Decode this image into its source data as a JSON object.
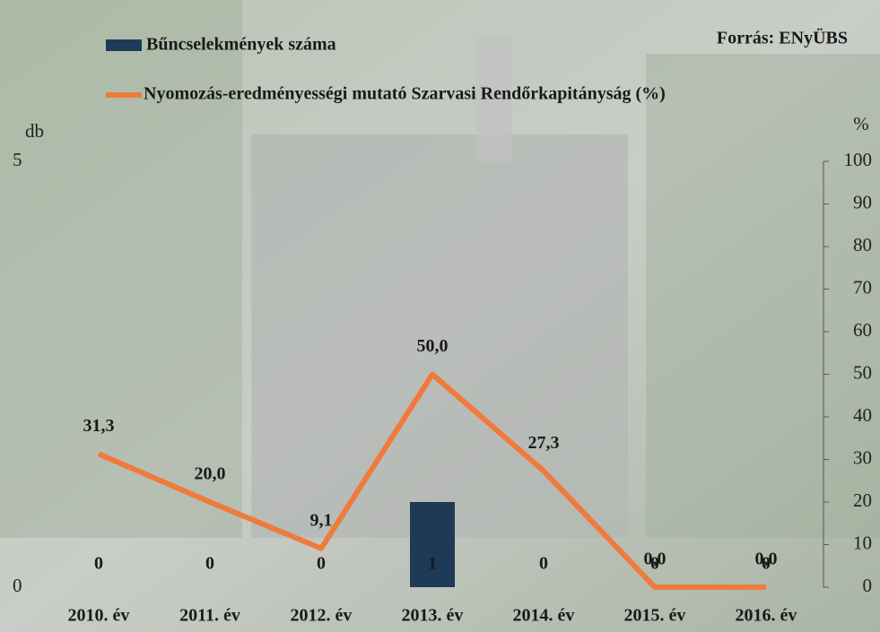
{
  "chart_data": {
    "type": "combo",
    "annotation": "Forrás: ENyÜBS",
    "y_label": "db",
    "y2_label": "%",
    "categories": [
      "2010. év",
      "2011. év",
      "2012. év",
      "2013. év",
      "2014. év",
      "2015. év",
      "2016. év"
    ],
    "series": [
      {
        "name": "Bűncselekmények száma",
        "type": "bar",
        "color": "#1f3a56",
        "values": [
          0,
          0,
          0,
          1,
          0,
          0,
          0
        ]
      },
      {
        "name": "Nyomozás-eredményességi mutató Szarvasi Rendőrkapitányság (%)",
        "type": "line",
        "axis": "y2",
        "color": "#f07a3c",
        "values": [
          31.3,
          20.0,
          9.1,
          50.0,
          27.3,
          0.0,
          0.0
        ],
        "value_labels": [
          "31,3",
          "20,0",
          "9,1",
          "50,0",
          "27,3",
          "0,0",
          "0,0"
        ]
      }
    ],
    "ylim": [
      0,
      5
    ],
    "yticks": [
      0,
      5
    ],
    "y2lim": [
      0,
      100
    ],
    "y2ticks": [
      0,
      10,
      20,
      30,
      40,
      50,
      60,
      70,
      80,
      90,
      100
    ]
  }
}
